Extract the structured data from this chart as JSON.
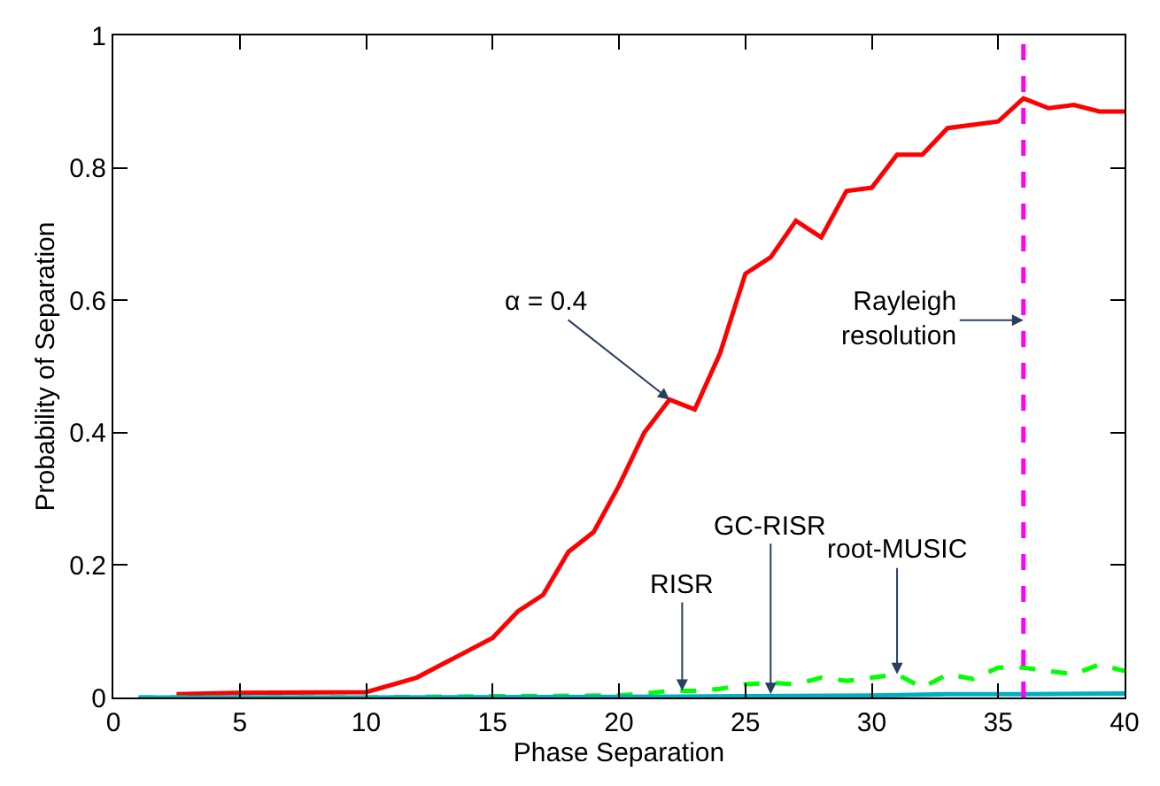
{
  "chart_data": {
    "type": "line",
    "xlabel": "Phase Separation",
    "ylabel": "Probability of Separation",
    "xlim": [
      0,
      40
    ],
    "xticks": [
      0,
      5,
      10,
      15,
      20,
      25,
      30,
      35,
      40
    ],
    "ylim": [
      0,
      1
    ],
    "yticks": [
      0,
      0.2,
      0.4,
      0.6,
      0.8,
      1
    ],
    "legend": false,
    "series": [
      {
        "color": "#ff0000",
        "line_style": "solid",
        "x": [
          2.5,
          5,
          10,
          12,
          15,
          16,
          17,
          18,
          19,
          20,
          21,
          22,
          23,
          24,
          25,
          26,
          27,
          28,
          29,
          30,
          31,
          32,
          33,
          34,
          35,
          36,
          37,
          38,
          39,
          40
        ],
        "values": [
          0.005,
          0.007,
          0.008,
          0.03,
          0.09,
          0.13,
          0.155,
          0.22,
          0.25,
          0.32,
          0.4,
          0.45,
          0.435,
          0.52,
          0.64,
          0.665,
          0.72,
          0.695,
          0.765,
          0.77,
          0.82,
          0.82,
          0.86,
          0.865,
          0.87,
          0.905,
          0.89,
          0.895,
          0.885,
          0.885
        ]
      },
      {
        "color": "#00ff00",
        "line_style": "dashed",
        "x": [
          1,
          10,
          15,
          20,
          21,
          22,
          23,
          24,
          25,
          26,
          27,
          28,
          29,
          30,
          31,
          32,
          33,
          34,
          35,
          36,
          37,
          38,
          39,
          40
        ],
        "values": [
          0,
          0,
          0.002,
          0.003,
          0.006,
          0.01,
          0.01,
          0.013,
          0.02,
          0.022,
          0.02,
          0.03,
          0.025,
          0.03,
          0.035,
          0.015,
          0.035,
          0.028,
          0.045,
          0.045,
          0.04,
          0.035,
          0.05,
          0.04
        ]
      },
      {
        "color": "#00b0c0",
        "line_style": "solid",
        "x": [
          1,
          10,
          20,
          25,
          30,
          33,
          36,
          40
        ],
        "values": [
          0,
          0,
          0.001,
          0.002,
          0.003,
          0.005,
          0.005,
          0.006
        ]
      }
    ],
    "ref_lines": [
      {
        "axis": "x",
        "value": 36,
        "label": "Rayleigh resolution",
        "color": "#ff00ff",
        "line_style": "dashed"
      }
    ],
    "annotations": [
      {
        "text": "α = 0.4",
        "x": 22,
        "y": 0.45
      },
      {
        "text": "RISR",
        "x": 22.5,
        "y": 0.01
      },
      {
        "text": "GC-RISR",
        "x": 26,
        "y": 0.005
      },
      {
        "text": "root-MUSIC",
        "x": 31,
        "y": 0.035
      }
    ]
  }
}
